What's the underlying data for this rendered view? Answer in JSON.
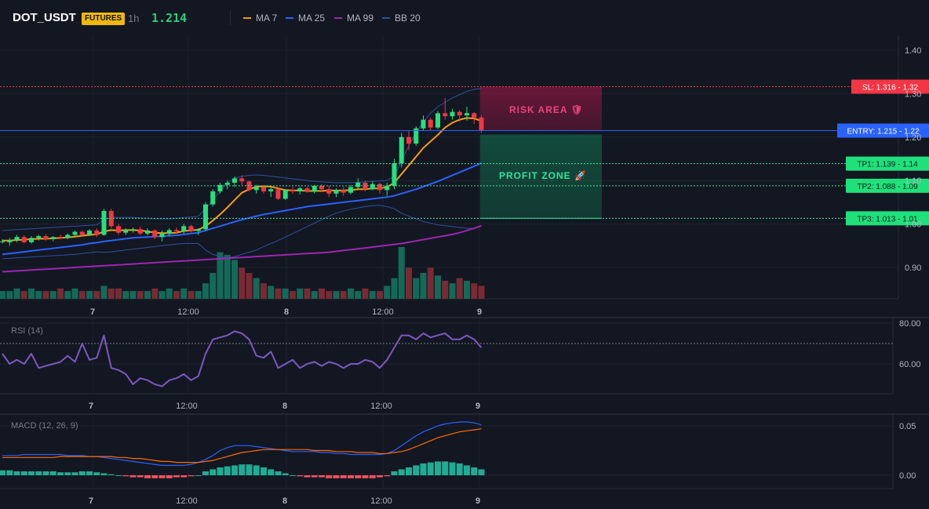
{
  "header": {
    "symbol": "DOT_USDT",
    "badge": "FUTURES",
    "timeframe": "1h",
    "price": "1.214",
    "legend": [
      {
        "label": "MA 7",
        "color": "#f39c12"
      },
      {
        "label": "MA 25",
        "color": "#2962ff"
      },
      {
        "label": "MA 99",
        "color": "#9c27b0"
      },
      {
        "label": "BB 20",
        "color": "#2f4fa0"
      }
    ]
  },
  "levels": {
    "sl": {
      "tag": "SL: 1.316 - 1.32",
      "value": 1.316,
      "color": "#f23645"
    },
    "entry": {
      "tag": "ENTRY: 1.215 - 1.22",
      "value": 1.215,
      "color": "#2962ff"
    },
    "tp": [
      {
        "tag": "TP1: 1.139 - 1.14",
        "value": 1.139
      },
      {
        "tag": "TP2: 1.088 - 1.09",
        "value": 1.088
      },
      {
        "tag": "TP3: 1.013 - 1.01",
        "value": 1.013
      }
    ]
  },
  "zones": {
    "risk_label": "RISK AREA 🛡",
    "profit_label": "PROFIT ZONE 🚀"
  },
  "panels": {
    "rsi_label": "RSI (14)",
    "macd_label": "MACD (12, 26, 9)"
  },
  "chart_data": [
    {
      "type": "candlestick",
      "title": "DOT_USDT 1h",
      "x_ticks": [
        "7",
        "12:00",
        "8",
        "12:00",
        "9"
      ],
      "y_ticks": [
        "1.40",
        "1.30",
        "1.20",
        "1.10",
        "1.00",
        "0.90"
      ],
      "ylim": [
        0.85,
        1.45
      ],
      "candles": [
        [
          0.96,
          0.965,
          0.955,
          0.96
        ],
        [
          0.958,
          0.968,
          0.95,
          0.963
        ],
        [
          0.963,
          0.975,
          0.958,
          0.97
        ],
        [
          0.97,
          0.974,
          0.955,
          0.958
        ],
        [
          0.958,
          0.972,
          0.955,
          0.968
        ],
        [
          0.968,
          0.975,
          0.962,
          0.972
        ],
        [
          0.972,
          0.976,
          0.962,
          0.965
        ],
        [
          0.965,
          0.972,
          0.96,
          0.97
        ],
        [
          0.97,
          0.976,
          0.965,
          0.968
        ],
        [
          0.968,
          0.978,
          0.965,
          0.975
        ],
        [
          0.975,
          0.985,
          0.97,
          0.982
        ],
        [
          0.982,
          0.985,
          0.972,
          0.975
        ],
        [
          0.975,
          0.988,
          0.972,
          0.985
        ],
        [
          0.985,
          0.99,
          0.97,
          0.975
        ],
        [
          0.975,
          1.035,
          0.973,
          1.03
        ],
        [
          1.03,
          1.035,
          0.99,
          0.995
        ],
        [
          0.995,
          1.0,
          0.975,
          0.98
        ],
        [
          0.98,
          0.99,
          0.975,
          0.986
        ],
        [
          0.986,
          0.992,
          0.98,
          0.988
        ],
        [
          0.988,
          0.994,
          0.975,
          0.978
        ],
        [
          0.978,
          0.99,
          0.974,
          0.985
        ],
        [
          0.985,
          0.988,
          0.965,
          0.97
        ],
        [
          0.97,
          0.985,
          0.96,
          0.978
        ],
        [
          0.978,
          0.99,
          0.972,
          0.986
        ],
        [
          0.986,
          0.992,
          0.978,
          0.983
        ],
        [
          0.983,
          1.0,
          0.978,
          0.995
        ],
        [
          0.995,
          0.998,
          0.98,
          0.984
        ],
        [
          0.984,
          0.99,
          0.975,
          0.988
        ],
        [
          0.988,
          1.05,
          0.985,
          1.045
        ],
        [
          1.045,
          1.08,
          1.04,
          1.075
        ],
        [
          1.075,
          1.095,
          1.07,
          1.09
        ],
        [
          1.09,
          1.1,
          1.08,
          1.095
        ],
        [
          1.095,
          1.11,
          1.085,
          1.105
        ],
        [
          1.105,
          1.112,
          1.09,
          1.098
        ],
        [
          1.098,
          1.1,
          1.075,
          1.078
        ],
        [
          1.078,
          1.09,
          1.07,
          1.085
        ],
        [
          1.085,
          1.088,
          1.07,
          1.075
        ],
        [
          1.075,
          1.085,
          1.062,
          1.08
        ],
        [
          1.08,
          1.082,
          1.055,
          1.058
        ],
        [
          1.058,
          1.08,
          1.055,
          1.078
        ],
        [
          1.078,
          1.085,
          1.07,
          1.075
        ],
        [
          1.075,
          1.085,
          1.068,
          1.082
        ],
        [
          1.082,
          1.086,
          1.072,
          1.075
        ],
        [
          1.075,
          1.09,
          1.07,
          1.088
        ],
        [
          1.088,
          1.092,
          1.075,
          1.08
        ],
        [
          1.08,
          1.088,
          1.062,
          1.07
        ],
        [
          1.07,
          1.082,
          1.062,
          1.078
        ],
        [
          1.078,
          1.085,
          1.065,
          1.072
        ],
        [
          1.072,
          1.09,
          1.068,
          1.085
        ],
        [
          1.085,
          1.105,
          1.08,
          1.095
        ],
        [
          1.095,
          1.1,
          1.075,
          1.08
        ],
        [
          1.08,
          1.098,
          1.078,
          1.092
        ],
        [
          1.092,
          1.095,
          1.07,
          1.078
        ],
        [
          1.078,
          1.095,
          1.065,
          1.088
        ],
        [
          1.088,
          1.15,
          1.08,
          1.14
        ],
        [
          1.14,
          1.21,
          1.13,
          1.2
        ],
        [
          1.2,
          1.215,
          1.17,
          1.185
        ],
        [
          1.185,
          1.225,
          1.18,
          1.22
        ],
        [
          1.22,
          1.25,
          1.215,
          1.24
        ],
        [
          1.24,
          1.245,
          1.215,
          1.222
        ],
        [
          1.222,
          1.26,
          1.218,
          1.255
        ],
        [
          1.255,
          1.29,
          1.24,
          1.248
        ],
        [
          1.248,
          1.265,
          1.24,
          1.258
        ],
        [
          1.258,
          1.262,
          1.235,
          1.25
        ],
        [
          1.25,
          1.27,
          1.238,
          1.255
        ],
        [
          1.255,
          1.258,
          1.23,
          1.245
        ],
        [
          1.245,
          1.25,
          1.21,
          1.214
        ]
      ],
      "ma7": [
        0.962,
        0.962,
        0.963,
        0.964,
        0.965,
        0.966,
        0.966,
        0.967,
        0.968,
        0.969,
        0.971,
        0.973,
        0.975,
        0.976,
        0.983,
        0.986,
        0.985,
        0.986,
        0.986,
        0.985,
        0.983,
        0.98,
        0.979,
        0.979,
        0.98,
        0.984,
        0.985,
        0.987,
        0.995,
        1.008,
        1.022,
        1.038,
        1.055,
        1.072,
        1.08,
        1.086,
        1.087,
        1.086,
        1.082,
        1.078,
        1.077,
        1.077,
        1.076,
        1.076,
        1.076,
        1.077,
        1.077,
        1.077,
        1.078,
        1.08,
        1.08,
        1.082,
        1.082,
        1.085,
        1.095,
        1.115,
        1.135,
        1.155,
        1.175,
        1.19,
        1.205,
        1.222,
        1.233,
        1.24,
        1.244,
        1.243,
        1.237
      ],
      "ma25": [
        0.93,
        0.932,
        0.934,
        0.936,
        0.938,
        0.94,
        0.942,
        0.944,
        0.946,
        0.948,
        0.95,
        0.952,
        0.955,
        0.957,
        0.96,
        0.962,
        0.964,
        0.966,
        0.968,
        0.969,
        0.97,
        0.971,
        0.972,
        0.973,
        0.974,
        0.976,
        0.978,
        0.98,
        0.985,
        0.99,
        0.995,
        1.0,
        1.005,
        1.01,
        1.014,
        1.018,
        1.022,
        1.025,
        1.028,
        1.031,
        1.034,
        1.037,
        1.04,
        1.042,
        1.044,
        1.046,
        1.048,
        1.05,
        1.052,
        1.054,
        1.056,
        1.058,
        1.06,
        1.062,
        1.065,
        1.07,
        1.075,
        1.08,
        1.086,
        1.092,
        1.098,
        1.105,
        1.112,
        1.119,
        1.126,
        1.133,
        1.14
      ],
      "ma99": [
        0.89,
        0.891,
        0.892,
        0.893,
        0.894,
        0.895,
        0.896,
        0.897,
        0.898,
        0.899,
        0.9,
        0.901,
        0.902,
        0.903,
        0.904,
        0.905,
        0.906,
        0.907,
        0.908,
        0.909,
        0.91,
        0.911,
        0.912,
        0.913,
        0.914,
        0.915,
        0.916,
        0.917,
        0.918,
        0.919,
        0.92,
        0.921,
        0.922,
        0.923,
        0.924,
        0.925,
        0.926,
        0.927,
        0.928,
        0.929,
        0.93,
        0.931,
        0.932,
        0.933,
        0.934,
        0.935,
        0.937,
        0.939,
        0.941,
        0.943,
        0.945,
        0.947,
        0.949,
        0.951,
        0.953,
        0.955,
        0.958,
        0.961,
        0.964,
        0.967,
        0.97,
        0.973,
        0.976,
        0.98,
        0.985,
        0.99,
        0.996
      ],
      "bb_upper": [
        0.985,
        0.986,
        0.987,
        0.988,
        0.989,
        0.99,
        0.991,
        0.992,
        0.993,
        0.994,
        0.995,
        0.996,
        0.997,
        0.998,
        1.01,
        1.015,
        1.015,
        1.015,
        1.015,
        1.014,
        1.013,
        1.012,
        1.012,
        1.012,
        1.013,
        1.015,
        1.016,
        1.018,
        1.035,
        1.055,
        1.075,
        1.095,
        1.105,
        1.11,
        1.112,
        1.113,
        1.112,
        1.11,
        1.108,
        1.106,
        1.104,
        1.102,
        1.1,
        1.098,
        1.097,
        1.096,
        1.095,
        1.095,
        1.095,
        1.096,
        1.097,
        1.098,
        1.099,
        1.1,
        1.11,
        1.145,
        1.18,
        1.21,
        1.235,
        1.255,
        1.27,
        1.28,
        1.29,
        1.298,
        1.305,
        1.31,
        1.312
      ],
      "bb_lower": [
        0.92,
        0.921,
        0.922,
        0.923,
        0.924,
        0.925,
        0.926,
        0.927,
        0.928,
        0.929,
        0.93,
        0.932,
        0.934,
        0.936,
        0.935,
        0.936,
        0.938,
        0.94,
        0.942,
        0.944,
        0.946,
        0.948,
        0.95,
        0.952,
        0.954,
        0.955,
        0.955,
        0.955,
        0.94,
        0.93,
        0.925,
        0.922,
        0.925,
        0.93,
        0.935,
        0.94,
        0.948,
        0.955,
        0.962,
        0.97,
        0.978,
        0.986,
        0.994,
        1.002,
        1.01,
        1.018,
        1.025,
        1.03,
        1.034,
        1.037,
        1.04,
        1.042,
        1.043,
        1.04,
        1.035,
        1.025,
        1.018,
        1.012,
        1.006,
        1.002,
        0.998,
        0.996,
        0.994,
        0.992,
        0.99,
        0.99,
        0.995
      ]
    },
    {
      "type": "bar",
      "title": "Volume",
      "values": [
        3,
        3,
        4,
        3,
        4,
        3,
        3,
        3,
        4,
        3,
        4,
        3,
        3,
        3,
        5,
        4,
        4,
        3,
        3,
        3,
        3,
        4,
        3,
        4,
        3,
        4,
        3,
        3,
        6,
        10,
        18,
        17,
        15,
        12,
        10,
        8,
        6,
        5,
        4,
        4,
        3,
        4,
        4,
        3,
        4,
        3,
        3,
        3,
        4,
        3,
        4,
        3,
        3,
        5,
        8,
        20,
        12,
        8,
        10,
        12,
        9,
        7,
        6,
        8,
        7,
        6,
        5
      ]
    },
    {
      "type": "line",
      "title": "RSI (14)",
      "y_ticks": [
        "80.00",
        "60.00"
      ],
      "ylim": [
        44,
        84
      ],
      "overbought": 70,
      "values": [
        65,
        60,
        62,
        60,
        65,
        58,
        59,
        60,
        61,
        64,
        61,
        70,
        62,
        63,
        74,
        58,
        57,
        55,
        50,
        53,
        52,
        50,
        49,
        52,
        53,
        55,
        52,
        54,
        65,
        72,
        73,
        74,
        76,
        75,
        72,
        64,
        63,
        66,
        58,
        60,
        62,
        58,
        60,
        61,
        59,
        61,
        60,
        58,
        60,
        60,
        62,
        61,
        58,
        62,
        68,
        74,
        74,
        72,
        75,
        73,
        74,
        75,
        72,
        72,
        74,
        72,
        68
      ]
    },
    {
      "type": "line",
      "title": "MACD (12, 26, 9)",
      "y_ticks": [
        "0.05",
        "0.00"
      ],
      "ylim": [
        -0.015,
        0.06
      ],
      "macd": [
        0.02,
        0.02,
        0.02,
        0.021,
        0.021,
        0.021,
        0.021,
        0.021,
        0.021,
        0.02,
        0.02,
        0.02,
        0.019,
        0.019,
        0.018,
        0.017,
        0.016,
        0.015,
        0.014,
        0.013,
        0.012,
        0.011,
        0.01,
        0.01,
        0.01,
        0.01,
        0.011,
        0.013,
        0.016,
        0.02,
        0.025,
        0.028,
        0.03,
        0.03,
        0.03,
        0.029,
        0.028,
        0.027,
        0.026,
        0.025,
        0.024,
        0.024,
        0.024,
        0.024,
        0.023,
        0.023,
        0.022,
        0.022,
        0.021,
        0.021,
        0.021,
        0.021,
        0.021,
        0.022,
        0.025,
        0.03,
        0.035,
        0.04,
        0.044,
        0.047,
        0.05,
        0.052,
        0.053,
        0.054,
        0.054,
        0.053,
        0.051
      ],
      "signal": [
        0.018,
        0.018,
        0.018,
        0.018,
        0.018,
        0.018,
        0.018,
        0.018,
        0.019,
        0.019,
        0.019,
        0.019,
        0.019,
        0.019,
        0.019,
        0.019,
        0.018,
        0.018,
        0.017,
        0.017,
        0.016,
        0.015,
        0.014,
        0.014,
        0.013,
        0.013,
        0.013,
        0.013,
        0.014,
        0.015,
        0.017,
        0.019,
        0.021,
        0.023,
        0.024,
        0.025,
        0.026,
        0.026,
        0.026,
        0.026,
        0.026,
        0.026,
        0.026,
        0.025,
        0.025,
        0.025,
        0.024,
        0.024,
        0.024,
        0.023,
        0.023,
        0.023,
        0.022,
        0.022,
        0.023,
        0.024,
        0.026,
        0.029,
        0.032,
        0.035,
        0.038,
        0.04,
        0.042,
        0.044,
        0.045,
        0.046,
        0.047
      ],
      "histogram": [
        0.005,
        0.005,
        0.004,
        0.004,
        0.004,
        0.004,
        0.004,
        0.004,
        0.003,
        0.003,
        0.003,
        0.004,
        0.004,
        0.003,
        0.002,
        0.001,
        0.0,
        -0.001,
        -0.002,
        -0.002,
        -0.003,
        -0.003,
        -0.003,
        -0.003,
        -0.002,
        -0.002,
        -0.001,
        0.0,
        0.004,
        0.006,
        0.008,
        0.009,
        0.01,
        0.011,
        0.011,
        0.01,
        0.008,
        0.006,
        0.004,
        0.002,
        0.0,
        -0.001,
        -0.002,
        -0.002,
        -0.002,
        -0.003,
        -0.003,
        -0.003,
        -0.003,
        -0.003,
        -0.003,
        -0.003,
        -0.002,
        -0.001,
        0.004,
        0.006,
        0.008,
        0.01,
        0.012,
        0.013,
        0.014,
        0.014,
        0.013,
        0.012,
        0.01,
        0.008,
        0.006
      ]
    }
  ]
}
